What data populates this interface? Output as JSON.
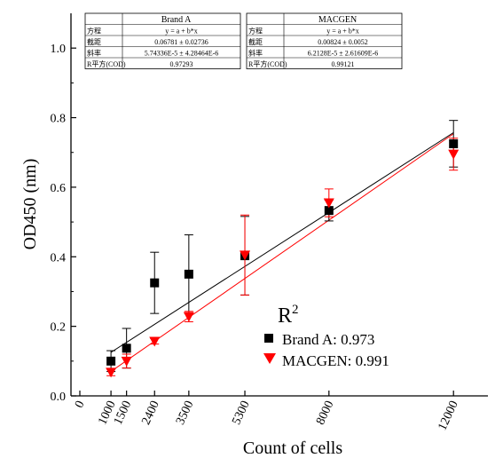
{
  "chart_data": {
    "type": "scatter",
    "xlabel": "Count of cells",
    "ylabel": "OD450 (nm)",
    "xlim": [
      0,
      13000
    ],
    "ylim": [
      0,
      1.1
    ],
    "x_ticks": [
      0,
      1000,
      1500,
      2400,
      3500,
      5300,
      8000,
      12000
    ],
    "y_ticks": [
      "0.0",
      "0.2",
      "0.4",
      "0.6",
      "0.8",
      "1.0"
    ],
    "legend": {
      "title": "R",
      "title_sup": "2",
      "placement": "lower-right",
      "entries": [
        "Brand A: 0.973",
        "MACGEN: 0.991"
      ]
    },
    "series": [
      {
        "name": "Brand A",
        "color": "#000000",
        "marker": "square",
        "x": [
          1000,
          1500,
          2400,
          3500,
          5300,
          8000,
          12000
        ],
        "y": [
          0.1,
          0.137,
          0.325,
          0.35,
          0.403,
          0.533,
          0.725
        ],
        "err": [
          0.03,
          0.057,
          0.088,
          0.113,
          0.113,
          0.03,
          0.067
        ],
        "fit": {
          "intercept": 0.06781,
          "slope": 5.74336e-05
        }
      },
      {
        "name": "MACGEN",
        "color": "#ff0000",
        "marker": "triangle-down",
        "x": [
          1000,
          1500,
          2400,
          3500,
          5300,
          8000,
          12000
        ],
        "y": [
          0.068,
          0.1,
          0.157,
          0.228,
          0.405,
          0.555,
          0.695
        ],
        "err": [
          0.01,
          0.02,
          0.008,
          0.015,
          0.115,
          0.04,
          0.046
        ],
        "fit": {
          "intercept": 0.00824,
          "slope": 6.2128e-05
        }
      }
    ],
    "fit_tables": [
      {
        "name": "Brand A",
        "rows": [
          [
            "方程",
            "y = a + b*x"
          ],
          [
            "截距",
            "0.06781 ± 0.02736"
          ],
          [
            "斜率",
            "5.74336E-5 ± 4.28464E-6"
          ],
          [
            "R平方(COD)",
            "0.97293"
          ]
        ]
      },
      {
        "name": "MACGEN",
        "rows": [
          [
            "方程",
            "y = a + b*x"
          ],
          [
            "截距",
            "0.00824 ± 0.0052"
          ],
          [
            "斜率",
            "6.2128E-5 ± 2.61609E-6"
          ],
          [
            "R平方(COD)",
            "0.99121"
          ]
        ]
      }
    ]
  }
}
